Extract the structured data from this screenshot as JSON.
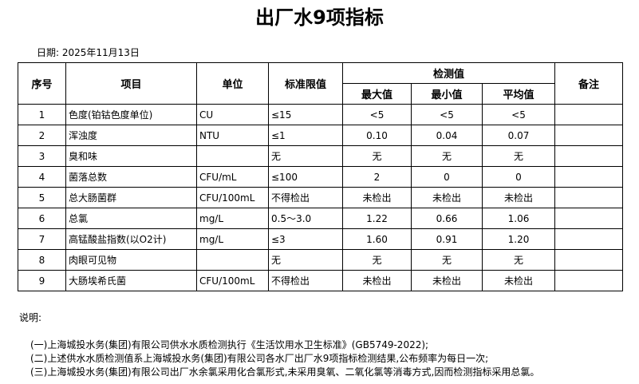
{
  "title": "出厂水9项指标",
  "date": "日期: 2025年11月13日",
  "headers": {
    "no": "序号",
    "item": "项目",
    "unit": "单位",
    "limit": "标准限值",
    "measured": "检测值",
    "max": "最大值",
    "min": "最小值",
    "avg": "平均值",
    "remark": "备注"
  },
  "rows": [
    {
      "no": "1",
      "item": "色度(铂钴色度单位)",
      "unit": "CU",
      "limit": "≤15",
      "max": "<5",
      "min": "<5",
      "avg": "<5",
      "remark": ""
    },
    {
      "no": "2",
      "item": "浑浊度",
      "unit": "NTU",
      "limit": "≤1",
      "max": "0.10",
      "min": "0.04",
      "avg": "0.07",
      "remark": ""
    },
    {
      "no": "3",
      "item": "臭和味",
      "unit": "",
      "limit": "无",
      "max": "无",
      "min": "无",
      "avg": "无",
      "remark": ""
    },
    {
      "no": "4",
      "item": "菌落总数",
      "unit": "CFU/mL",
      "limit": "≤100",
      "max": "2",
      "min": "0",
      "avg": "0",
      "remark": ""
    },
    {
      "no": "5",
      "item": "总大肠菌群",
      "unit": "CFU/100mL",
      "limit": "不得检出",
      "max": "未检出",
      "min": "未检出",
      "avg": "未检出",
      "remark": ""
    },
    {
      "no": "6",
      "item": "总氯",
      "unit": "mg/L",
      "limit": "0.5～3.0",
      "max": "1.22",
      "min": "0.66",
      "avg": "1.06",
      "remark": ""
    },
    {
      "no": "7",
      "item": "高锰酸盐指数(以O2计)",
      "unit": "mg/L",
      "limit": "≤3",
      "max": "1.60",
      "min": "0.91",
      "avg": "1.20",
      "remark": ""
    },
    {
      "no": "8",
      "item": "肉眼可见物",
      "unit": "",
      "limit": "无",
      "max": "无",
      "min": "无",
      "avg": "无",
      "remark": ""
    },
    {
      "no": "9",
      "item": "大肠埃希氏菌",
      "unit": "CFU/100mL",
      "limit": "不得检出",
      "max": "未检出",
      "min": "未检出",
      "avg": "未检出",
      "remark": ""
    }
  ],
  "notes": {
    "label": "说明:",
    "items": [
      "(一)上海城投水务(集团)有限公司供水水质检测执行《生活饮用水卫生标准》(GB5749-2022);",
      "(二)上述供水水质检测值系上海城投水务(集团)有限公司各水厂出厂水9项指标检测结果,公布频率为每日一次;",
      "(三)上海城投水务(集团)有限公司出厂水余氯采用化合氯形式,未采用臭氧、二氧化氯等消毒方式,因而检测指标采用总氯。"
    ]
  }
}
